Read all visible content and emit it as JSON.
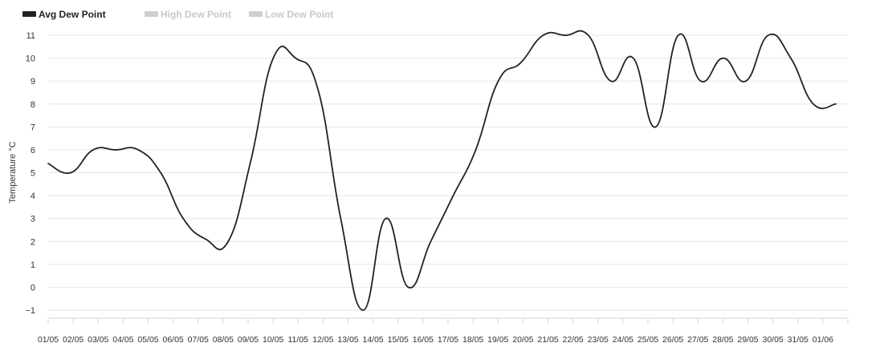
{
  "chart_data": {
    "type": "line",
    "title": "",
    "ylabel": "Temperature °C",
    "xlabel": "",
    "ylim": [
      -1,
      11
    ],
    "y_ticks": [
      -1,
      0,
      1,
      2,
      3,
      4,
      5,
      6,
      7,
      8,
      9,
      10,
      11
    ],
    "y_tick_labels": [
      "−1",
      "0",
      "1",
      "2",
      "3",
      "4",
      "5",
      "6",
      "7",
      "8",
      "9",
      "10",
      "11"
    ],
    "grid": true,
    "legend_position": "top-left",
    "x_tick_labels": [
      "01/05",
      "02/05",
      "03/05",
      "04/05",
      "05/05",
      "06/05",
      "07/05",
      "08/05",
      "09/05",
      "10/05",
      "11/05",
      "12/05",
      "13/05",
      "14/05",
      "15/05",
      "16/05",
      "17/05",
      "18/05",
      "19/05",
      "20/05",
      "21/05",
      "22/05",
      "23/05",
      "24/05",
      "25/05",
      "26/05",
      "27/05",
      "28/05",
      "29/05",
      "30/05",
      "31/05",
      "01/06"
    ],
    "series": [
      {
        "name": "Avg Dew Point",
        "color": "#222222",
        "active": true,
        "x": [
          0,
          1,
          2,
          3,
          4,
          5,
          6,
          7,
          8,
          9,
          10,
          11,
          12,
          13,
          14,
          15,
          16,
          17,
          18,
          19,
          20,
          21,
          22,
          23,
          24,
          25,
          26,
          27,
          28,
          29,
          30,
          31,
          32,
          33,
          34,
          35,
          36,
          37,
          38,
          39,
          40,
          41,
          42,
          43,
          44,
          45,
          46,
          47,
          48,
          49,
          50,
          51,
          52,
          53,
          54,
          55,
          56,
          57,
          58,
          59,
          60,
          61,
          62
        ],
        "values": [
          5.4,
          5,
          6,
          6,
          6,
          5,
          3,
          2.1,
          2,
          5.5,
          10,
          10,
          8.6,
          3,
          -1,
          3,
          0,
          2,
          4,
          6,
          9,
          9.8,
          11,
          11,
          11,
          9,
          10,
          7,
          11,
          9,
          10,
          9,
          11,
          10,
          8,
          8,
          null,
          null,
          null,
          null,
          null,
          null,
          null,
          null,
          null,
          null,
          null,
          null,
          null,
          null,
          null,
          null,
          null,
          null,
          null,
          null,
          null,
          null,
          null,
          null,
          null,
          null,
          null
        ]
      },
      {
        "name": "High Dew Point",
        "color": "#cccccc",
        "active": false,
        "values": []
      },
      {
        "name": "Low Dew Point",
        "color": "#cccccc",
        "active": false,
        "values": []
      }
    ]
  }
}
